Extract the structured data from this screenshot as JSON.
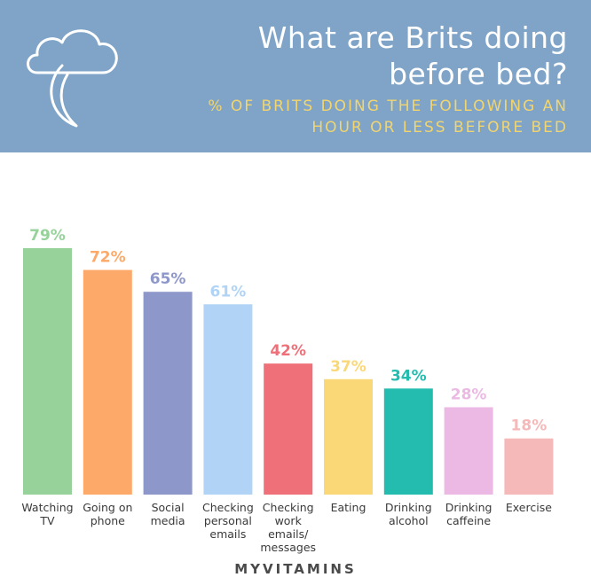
{
  "header": {
    "title_line1": "What are Brits doing",
    "title_line2": "before bed?",
    "subtitle_line1": "% OF BRITS DOING THE FOLLOWING AN",
    "subtitle_line2": "HOUR OR LESS BEFORE BED",
    "background_color": "#7fa4c8",
    "title_color": "#ffffff",
    "subtitle_color": "#f2d56e",
    "icon": "cloud-moon-icon"
  },
  "brand": {
    "label": "MYVITAMINS"
  },
  "chart_data": {
    "type": "bar",
    "title": "What are Brits doing before bed?",
    "subtitle": "% OF BRITS DOING THE FOLLOWING AN HOUR OR LESS BEFORE BED",
    "xlabel": "",
    "ylabel": "",
    "ylim": [
      0,
      100
    ],
    "grid": false,
    "legend": "none",
    "categories": [
      [
        "Watching",
        "TV"
      ],
      [
        "Going on",
        "phone"
      ],
      [
        "Social",
        "media"
      ],
      [
        "Checking",
        "personal",
        "emails"
      ],
      [
        "Checking",
        "work",
        "emails/",
        "messages"
      ],
      [
        "Eating"
      ],
      [
        "Drinking",
        "alcohol"
      ],
      [
        "Drinking",
        "caffeine"
      ],
      [
        "Exercise"
      ]
    ],
    "values": [
      79,
      72,
      65,
      61,
      42,
      37,
      34,
      28,
      18
    ],
    "value_labels": [
      "79%",
      "72%",
      "65%",
      "61%",
      "42%",
      "37%",
      "34%",
      "28%",
      "18%"
    ],
    "colors": [
      "#96d29a",
      "#fca96a",
      "#8e97c9",
      "#b1d4f6",
      "#ef7079",
      "#fbd877",
      "#24bcaf",
      "#ebb9e3",
      "#f5b9b9"
    ]
  }
}
